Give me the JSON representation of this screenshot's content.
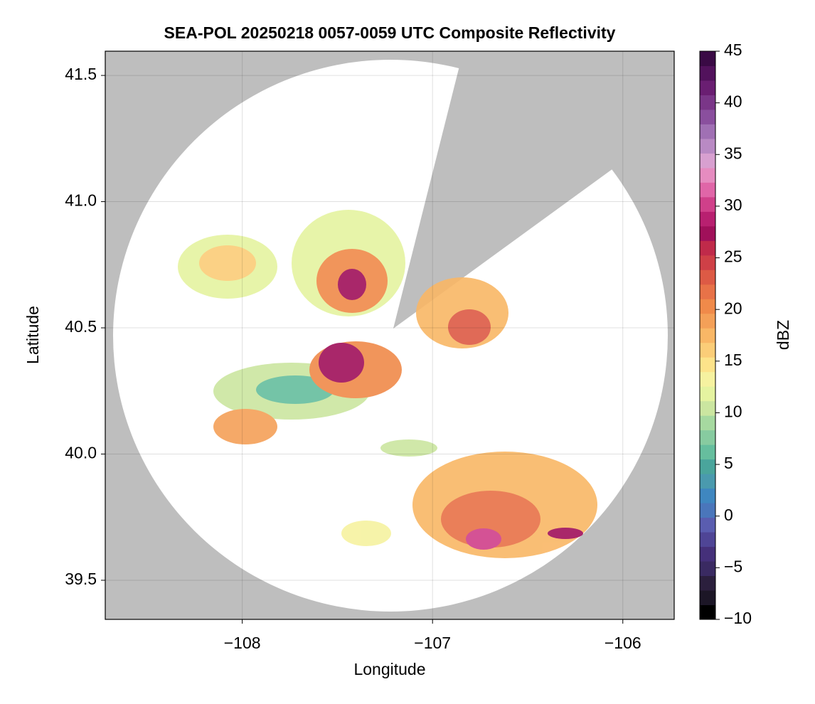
{
  "chart_data": {
    "type": "radar-map",
    "title": "SEA-POL 20250218 0057-0059 UTC Composite Reflectivity",
    "x_label": "Longitude",
    "y_label": "Latitude",
    "xlim": [
      -108.72,
      -105.73
    ],
    "ylim": [
      39.345,
      41.596
    ],
    "xticks": [
      {
        "value": -108,
        "label": "−108"
      },
      {
        "value": -107,
        "label": "−107"
      },
      {
        "value": -106,
        "label": "−106"
      }
    ],
    "yticks": [
      {
        "value": 39.5,
        "label": "39.5"
      },
      {
        "value": 40,
        "label": "40.0"
      },
      {
        "value": 40.5,
        "label": "40.5"
      },
      {
        "value": 41,
        "label": "41.0"
      },
      {
        "value": 41.5,
        "label": "41.5"
      }
    ],
    "grid": true,
    "colorbar": {
      "label": "dBZ",
      "lim": [
        -10,
        45
      ],
      "ticks": [
        {
          "value": -10,
          "label": "−10"
        },
        {
          "value": -5,
          "label": "−5"
        },
        0,
        5,
        10,
        15,
        20,
        25,
        30,
        35,
        40,
        45
      ],
      "colors": [
        "#000000",
        "#1c1626",
        "#2b1f3d",
        "#3a2a62",
        "#45307a",
        "#4f4596",
        "#5a5db0",
        "#4a76bb",
        "#3f87c0",
        "#4a9aae",
        "#4aa59c",
        "#66be9e",
        "#87cba0",
        "#a6d9a0",
        "#cbe6a0",
        "#e5f3a0",
        "#f6f2a0",
        "#fde38a",
        "#fbcd78",
        "#f9b766",
        "#f4a058",
        "#f08a4a",
        "#e87248",
        "#dd5a45",
        "#cf4047",
        "#c02a4a",
        "#a0105a",
        "#b82070",
        "#d0408a",
        "#e066a8",
        "#e68cc0",
        "#d8a0d0",
        "#b98ac4",
        "#a070b4",
        "#8a4f9e",
        "#7a3688",
        "#6a1e72",
        "#52125c",
        "#3a0a45"
      ]
    }
  }
}
